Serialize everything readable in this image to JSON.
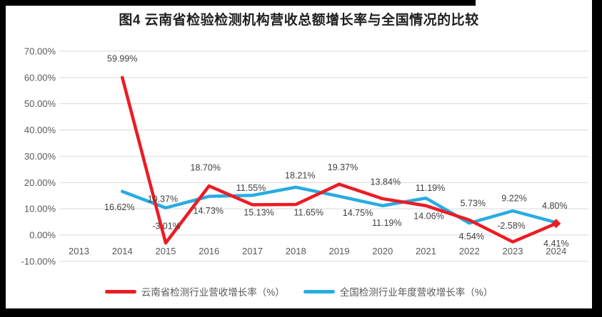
{
  "title": "图4 云南省检验检测机构营收总额增长率与全国情况的比较",
  "chart_data": {
    "type": "line",
    "title": "图4 云南省检验检测机构营收总额增长率与全国情况的比较",
    "categories": [
      "2013",
      "2014",
      "2015",
      "2016",
      "2017",
      "2018",
      "2019",
      "2020",
      "2021",
      "2022",
      "2023",
      "2024"
    ],
    "series": [
      {
        "name": "云南省检测行业营收增长率（%）",
        "color": "#ec1c24",
        "values": [
          null,
          59.99,
          -3.01,
          18.7,
          11.55,
          11.65,
          19.37,
          13.84,
          11.19,
          5.73,
          -2.58,
          4.41
        ],
        "label_offsets": [
          null,
          [
            0,
            -27
          ],
          [
            1,
            -24
          ],
          [
            -5,
            -26
          ],
          [
            -2,
            -24
          ],
          [
            18,
            11
          ],
          [
            5,
            -24
          ],
          [
            4,
            -24
          ],
          [
            6,
            -25
          ],
          [
            5,
            -24
          ],
          [
            -2,
            -23
          ],
          [
            0,
            28
          ]
        ],
        "end_marker": "diamond"
      },
      {
        "name": "全国检测行业年度营收增长率（%）",
        "color": "#29abe2",
        "values": [
          null,
          16.62,
          10.37,
          14.73,
          15.13,
          18.21,
          14.75,
          11.19,
          14.06,
          4.54,
          9.22,
          4.8
        ],
        "label_offsets": [
          null,
          [
            -4,
            22
          ],
          [
            -4,
            -13
          ],
          [
            -1,
            20
          ],
          [
            9,
            24
          ],
          [
            6,
            -17
          ],
          [
            26,
            23
          ],
          [
            6,
            24
          ],
          [
            4,
            25
          ],
          [
            3,
            18
          ],
          [
            2,
            -18
          ],
          [
            -2,
            -24
          ]
        ],
        "end_marker": "none"
      }
    ],
    "y_axis": {
      "min": -10,
      "max": 70,
      "step": 10,
      "tick_format": "0.00%"
    },
    "x_axis": {
      "type": "category"
    },
    "grid": "horizontal-only",
    "grid_color": "#d9d9d9",
    "tick_color": "#595959",
    "data_label_color": "#404040",
    "data_label_format": "0.00%",
    "legend_position": "bottom"
  }
}
